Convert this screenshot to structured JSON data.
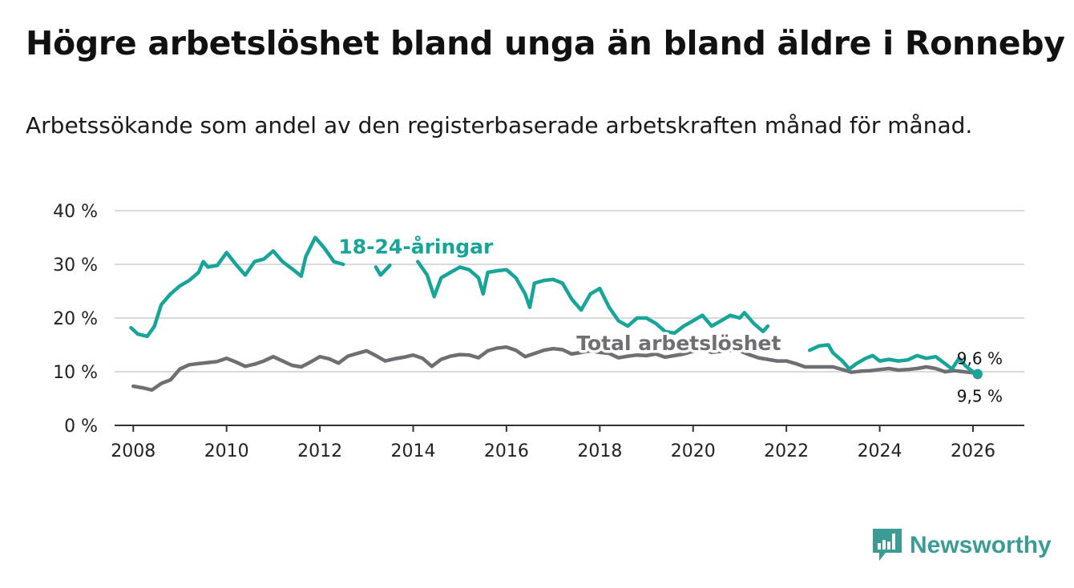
{
  "title": "Högre arbetslöshet bland unga än bland äldre i Ronneby",
  "subtitle": "Arbetssökande som andel av den registerbaserade arbetskraften månad för månad.",
  "brand": "Newsworthy",
  "colors": {
    "youth": "#16a598",
    "total": "#6f6f73",
    "grid": "#d9d9d9",
    "axis": "#333333",
    "brand": "#3a9c95"
  },
  "chart_data": {
    "type": "line",
    "title": "Högre arbetslöshet bland unga än bland äldre i Ronneby",
    "xlabel": "",
    "ylabel": "",
    "xlim": [
      2007.6,
      2027.1
    ],
    "ylim": [
      0,
      40
    ],
    "x_ticks": [
      2008,
      2010,
      2012,
      2014,
      2016,
      2018,
      2020,
      2022,
      2024,
      2026
    ],
    "x_tick_labels": [
      "2008",
      "2010",
      "2012",
      "2014",
      "2016",
      "2018",
      "2020",
      "2022",
      "2024",
      "2026"
    ],
    "y_ticks": [
      0,
      10,
      20,
      30,
      40
    ],
    "y_tick_labels": [
      "0 %",
      "10 %",
      "20 %",
      "30 %",
      "40 %"
    ],
    "grid": true,
    "series": [
      {
        "name": "Total arbetslöshet",
        "label": "Total arbetslöshet",
        "end_label": "9,5 %",
        "points": [
          [
            2008.0,
            7.3
          ],
          [
            2008.2,
            7.0
          ],
          [
            2008.4,
            6.6
          ],
          [
            2008.6,
            7.8
          ],
          [
            2008.8,
            8.5
          ],
          [
            2009.0,
            10.5
          ],
          [
            2009.2,
            11.3
          ],
          [
            2009.4,
            11.5
          ],
          [
            2009.6,
            11.7
          ],
          [
            2009.8,
            11.9
          ],
          [
            2010.0,
            12.5
          ],
          [
            2010.2,
            11.8
          ],
          [
            2010.4,
            11.0
          ],
          [
            2010.6,
            11.4
          ],
          [
            2010.8,
            12.0
          ],
          [
            2011.0,
            12.8
          ],
          [
            2011.2,
            12.0
          ],
          [
            2011.4,
            11.2
          ],
          [
            2011.6,
            10.9
          ],
          [
            2011.8,
            11.8
          ],
          [
            2012.0,
            12.8
          ],
          [
            2012.2,
            12.4
          ],
          [
            2012.4,
            11.6
          ],
          [
            2012.6,
            12.9
          ],
          [
            2012.8,
            13.4
          ],
          [
            2013.0,
            13.9
          ],
          [
            2013.2,
            13.0
          ],
          [
            2013.4,
            12.0
          ],
          [
            2013.6,
            12.4
          ],
          [
            2013.8,
            12.7
          ],
          [
            2014.0,
            13.1
          ],
          [
            2014.2,
            12.5
          ],
          [
            2014.4,
            11.0
          ],
          [
            2014.6,
            12.3
          ],
          [
            2014.8,
            12.9
          ],
          [
            2015.0,
            13.2
          ],
          [
            2015.2,
            13.1
          ],
          [
            2015.4,
            12.6
          ],
          [
            2015.6,
            13.9
          ],
          [
            2015.8,
            14.4
          ],
          [
            2016.0,
            14.6
          ],
          [
            2016.2,
            14.0
          ],
          [
            2016.4,
            12.8
          ],
          [
            2016.6,
            13.4
          ],
          [
            2016.8,
            14.0
          ],
          [
            2017.0,
            14.3
          ],
          [
            2017.2,
            14.1
          ],
          [
            2017.4,
            13.3
          ],
          [
            2017.6,
            13.6
          ],
          [
            2017.8,
            13.9
          ],
          [
            2018.0,
            13.6
          ],
          [
            2018.2,
            13.4
          ],
          [
            2018.4,
            12.6
          ],
          [
            2018.6,
            12.9
          ],
          [
            2018.8,
            13.1
          ],
          [
            2019.0,
            13.0
          ],
          [
            2019.2,
            13.3
          ],
          [
            2019.4,
            12.7
          ],
          [
            2019.6,
            13.0
          ],
          [
            2019.8,
            13.3
          ],
          [
            2020.0,
            13.8
          ],
          [
            2020.2,
            14.2
          ],
          [
            2020.4,
            13.6
          ],
          [
            2020.6,
            13.8
          ],
          [
            2020.8,
            14.0
          ],
          [
            2021.0,
            13.9
          ],
          [
            2021.2,
            13.2
          ],
          [
            2021.4,
            12.6
          ],
          [
            2021.6,
            12.3
          ],
          [
            2021.8,
            12.0
          ],
          [
            2022.0,
            12.0
          ],
          [
            2022.2,
            11.5
          ],
          [
            2022.4,
            10.9
          ],
          [
            2022.6,
            10.9
          ],
          [
            2022.8,
            10.9
          ],
          [
            2023.0,
            10.9
          ],
          [
            2023.2,
            10.4
          ],
          [
            2023.4,
            9.9
          ],
          [
            2023.6,
            10.1
          ],
          [
            2023.8,
            10.2
          ],
          [
            2024.0,
            10.4
          ],
          [
            2024.2,
            10.6
          ],
          [
            2024.4,
            10.3
          ],
          [
            2024.6,
            10.4
          ],
          [
            2024.8,
            10.6
          ],
          [
            2025.0,
            10.9
          ],
          [
            2025.2,
            10.6
          ],
          [
            2025.4,
            10.0
          ],
          [
            2025.6,
            10.2
          ],
          [
            2025.8,
            10.0
          ],
          [
            2026.0,
            9.8
          ],
          [
            2026.1,
            9.5
          ]
        ]
      },
      {
        "name": "18-24-åringar",
        "label": "18-24-åringar",
        "end_label": "9,6 %",
        "points": [
          [
            2007.95,
            18.2
          ],
          [
            2008.1,
            17.0
          ],
          [
            2008.3,
            16.6
          ],
          [
            2008.45,
            18.4
          ],
          [
            2008.6,
            22.5
          ],
          [
            2008.8,
            24.5
          ],
          [
            2009.0,
            26.0
          ],
          [
            2009.2,
            27.0
          ],
          [
            2009.4,
            28.5
          ],
          [
            2009.5,
            30.5
          ],
          [
            2009.6,
            29.5
          ],
          [
            2009.8,
            29.8
          ],
          [
            2010.0,
            32.2
          ],
          [
            2010.2,
            30.0
          ],
          [
            2010.4,
            28.0
          ],
          [
            2010.6,
            30.5
          ],
          [
            2010.8,
            31.0
          ],
          [
            2011.0,
            32.5
          ],
          [
            2011.2,
            30.5
          ],
          [
            2011.4,
            29.2
          ],
          [
            2011.6,
            27.8
          ],
          [
            2011.7,
            31.5
          ],
          [
            2011.9,
            35.0
          ],
          [
            2012.1,
            33.0
          ],
          [
            2012.3,
            30.5
          ],
          [
            2012.5,
            30.0
          ],
          [
            2013.2,
            29.5
          ],
          [
            2013.3,
            28.0
          ],
          [
            2013.5,
            29.8
          ],
          [
            2014.1,
            30.5
          ],
          [
            2014.3,
            28.0
          ],
          [
            2014.45,
            24.0
          ],
          [
            2014.6,
            27.5
          ],
          [
            2014.8,
            28.5
          ],
          [
            2015.0,
            29.5
          ],
          [
            2015.2,
            29.0
          ],
          [
            2015.4,
            27.5
          ],
          [
            2015.5,
            24.5
          ],
          [
            2015.6,
            28.5
          ],
          [
            2015.8,
            28.8
          ],
          [
            2016.0,
            29.0
          ],
          [
            2016.2,
            27.5
          ],
          [
            2016.4,
            24.5
          ],
          [
            2016.5,
            22.0
          ],
          [
            2016.6,
            26.5
          ],
          [
            2016.8,
            27.0
          ],
          [
            2017.0,
            27.2
          ],
          [
            2017.2,
            26.5
          ],
          [
            2017.4,
            23.5
          ],
          [
            2017.6,
            21.5
          ],
          [
            2017.8,
            24.5
          ],
          [
            2018.0,
            25.5
          ],
          [
            2018.2,
            22.0
          ],
          [
            2018.4,
            19.5
          ],
          [
            2018.6,
            18.5
          ],
          [
            2018.8,
            20.0
          ],
          [
            2019.0,
            20.0
          ],
          [
            2019.2,
            19.0
          ],
          [
            2019.4,
            17.5
          ],
          [
            2019.6,
            17.2
          ],
          [
            2019.8,
            18.5
          ],
          [
            2020.0,
            19.5
          ],
          [
            2020.2,
            20.5
          ],
          [
            2020.4,
            18.5
          ],
          [
            2020.6,
            19.5
          ],
          [
            2020.8,
            20.5
          ],
          [
            2021.0,
            20.0
          ],
          [
            2021.1,
            21.0
          ],
          [
            2021.3,
            19.0
          ],
          [
            2021.5,
            17.5
          ],
          [
            2021.6,
            18.5
          ],
          [
            2022.5,
            14.0
          ],
          [
            2022.7,
            14.8
          ],
          [
            2022.9,
            15.0
          ],
          [
            2023.0,
            13.5
          ],
          [
            2023.2,
            12.0
          ],
          [
            2023.35,
            10.5
          ],
          [
            2023.5,
            11.5
          ],
          [
            2023.7,
            12.5
          ],
          [
            2023.85,
            13.0
          ],
          [
            2024.0,
            12.0
          ],
          [
            2024.2,
            12.3
          ],
          [
            2024.4,
            12.0
          ],
          [
            2024.6,
            12.2
          ],
          [
            2024.8,
            13.0
          ],
          [
            2025.0,
            12.5
          ],
          [
            2025.2,
            12.8
          ],
          [
            2025.4,
            11.5
          ],
          [
            2025.55,
            10.5
          ],
          [
            2025.7,
            12.5
          ],
          [
            2025.85,
            11.0
          ],
          [
            2026.0,
            10.0
          ],
          [
            2026.1,
            9.6
          ]
        ]
      }
    ],
    "annotations": [
      {
        "text": "18-24-åringar",
        "x": 2012.4,
        "y": 32.0,
        "series": "18-24-åringar"
      },
      {
        "text": "Total arbetslöshet",
        "x": 2017.5,
        "y": 14.0,
        "series": "Total arbetslöshet"
      }
    ]
  }
}
